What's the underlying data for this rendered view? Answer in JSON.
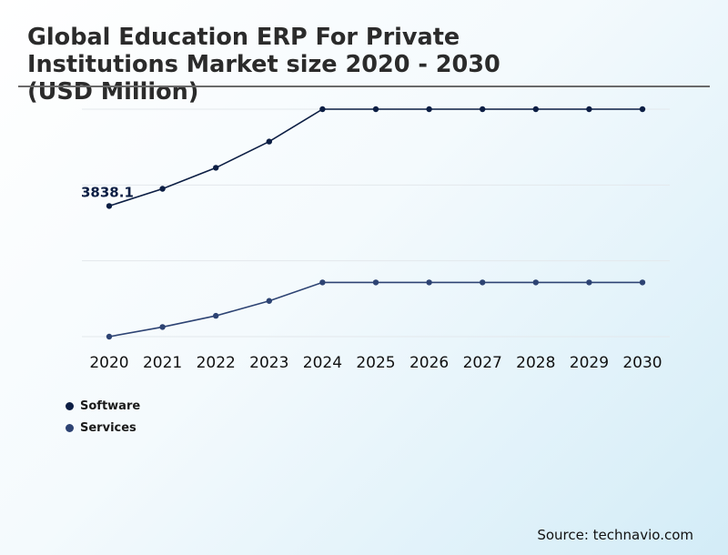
{
  "chart_data": {
    "type": "line",
    "title": "Global Education ERP For Private Institutions Market size 2020 - 2030 (USD Million)",
    "x": [
      "2020",
      "2021",
      "2022",
      "2023",
      "2024",
      "2025",
      "2026",
      "2027",
      "2028",
      "2029",
      "2030"
    ],
    "series": [
      {
        "name": "Software",
        "color": "#0c1e44",
        "values": [
          3838.1,
          4065,
          4342,
          4688,
          5115,
          5115,
          5115,
          5115,
          5115,
          5115,
          5115
        ],
        "data_labels": [
          {
            "index": 0,
            "text": "3838.1"
          }
        ]
      },
      {
        "name": "Services",
        "color": "#2d4373",
        "values": [
          2115,
          2242,
          2390,
          2586,
          2830,
          2830,
          2830,
          2830,
          2830,
          2830,
          2830
        ]
      }
    ],
    "ylim": [
      2115,
      5115
    ],
    "gridlines": true,
    "xlabel": "",
    "ylabel": "",
    "legend_position": "bottom-left"
  },
  "source": "Source: technavio.com"
}
